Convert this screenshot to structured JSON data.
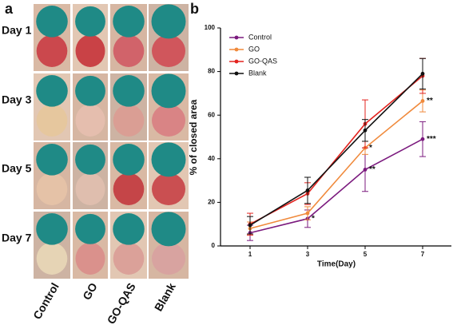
{
  "panel_a": {
    "label": "a",
    "rows": [
      "Day 1",
      "Day 3",
      "Day 5",
      "Day 7"
    ],
    "columns": [
      "Control",
      "GO",
      "GO-QAS",
      "Blank"
    ]
  },
  "chart_data": {
    "type": "line",
    "label": "b",
    "x_label": "Time(Day)",
    "y_label": "% of closed area",
    "x": [
      1,
      3,
      5,
      7
    ],
    "xlim": [
      0,
      8
    ],
    "xticks": [
      1,
      3,
      5,
      7
    ],
    "ylim": [
      0,
      100
    ],
    "yticks": [
      0,
      20,
      40,
      60,
      80,
      100
    ],
    "legend": "upper left",
    "series": [
      {
        "name": "Control",
        "color": "#7b1a7e",
        "values": [
          6,
          12.5,
          35,
          49
        ],
        "errors": [
          3.5,
          4,
          10,
          8
        ],
        "significance": [
          null,
          "*",
          "**",
          "***"
        ]
      },
      {
        "name": "GO",
        "color": "#f08a3c",
        "values": [
          8,
          15,
          45,
          66.5
        ],
        "errors": [
          3,
          3,
          3,
          5
        ],
        "significance": [
          null,
          null,
          "*",
          "**"
        ]
      },
      {
        "name": "GO-QAS",
        "color": "#e3231f",
        "values": [
          10,
          24,
          56,
          78
        ],
        "errors": [
          5,
          5,
          11,
          8
        ],
        "significance": [
          null,
          null,
          null,
          null
        ]
      },
      {
        "name": "Blank",
        "color": "#111111",
        "values": [
          9.5,
          25.5,
          53,
          79
        ],
        "errors": [
          4,
          6,
          5,
          7
        ],
        "significance": [
          null,
          null,
          null,
          null
        ]
      }
    ]
  }
}
